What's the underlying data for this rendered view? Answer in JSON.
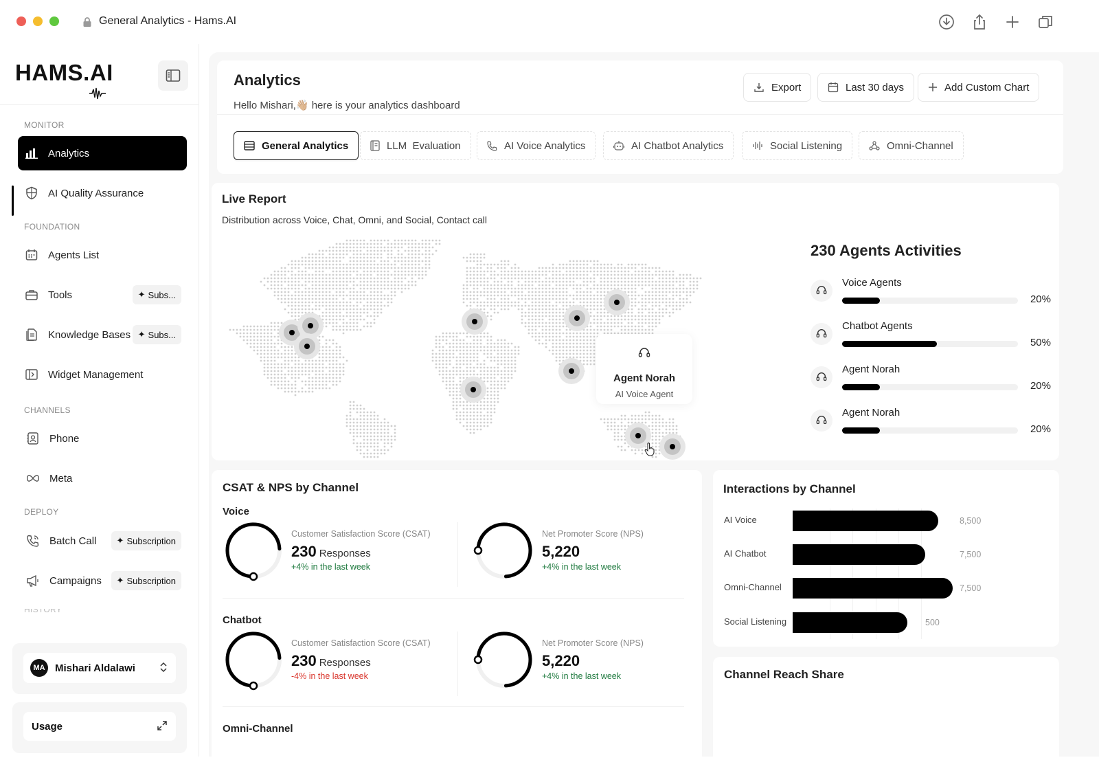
{
  "browser": {
    "title": "General Analytics - Hams.AI"
  },
  "sidebar": {
    "logo": "HAMS.AI",
    "sections": {
      "monitor": "MONITOR",
      "foundation": "FOUNDATION",
      "channels": "CHANNELS",
      "deploy": "DEPLOY",
      "history": "HISTORY"
    },
    "items": {
      "analytics": "Analytics",
      "ai_quality": "AI Quality Assurance",
      "agents_list": "Agents List",
      "tools": "Tools",
      "knowledge_bases": "Knowledge Bases",
      "widget_management": "Widget Management",
      "phone": "Phone",
      "meta": "Meta",
      "batch_call": "Batch Call",
      "campaigns": "Campaigns"
    },
    "badges": {
      "tools": "Subs...",
      "knowledge_bases": "Subs...",
      "batch_call": "Subscription",
      "campaigns": "Subscription"
    },
    "user": {
      "initials": "MA",
      "name": "Mishari Aldalawi"
    },
    "usage": "Usage"
  },
  "header": {
    "title": "Analytics",
    "subtitle": "Hello Mishari,👋🏼 here is your analytics dashboard",
    "export": "Export",
    "range": "Last 30 days",
    "add_chart": "Add Custom Chart"
  },
  "tabs": [
    "General Analytics",
    "LLM  Evaluation",
    "AI Voice Analytics",
    "AI Chatbot Analytics",
    "Social Listening",
    "Omni-Channel"
  ],
  "live_report": {
    "title": "Live Report",
    "subtitle": "Distribution across Voice, Chat, Omni, and Social, Contact call",
    "tooltip": {
      "name": "Agent Norah",
      "role": "AI Voice Agent"
    },
    "activities_title": "230 Agents Activities",
    "activities": [
      {
        "name": "Voice Agents",
        "percent": 20,
        "label": "20%",
        "icon": "headset-icon"
      },
      {
        "name": "Chatbot Agents",
        "percent": 50,
        "label": "50%",
        "icon": "headset-icon"
      },
      {
        "name": "Agent Norah",
        "percent": 20,
        "label": "20%",
        "icon": "headset-icon"
      },
      {
        "name": "Agent Norah",
        "percent": 20,
        "label": "20%",
        "icon": "headset-icon"
      }
    ]
  },
  "csat": {
    "title": "CSAT & NPS by Channel",
    "groups": [
      {
        "label": "Voice",
        "csat": {
          "label": "Customer Satisfaction Score (CSAT)",
          "value": "230",
          "unit": "Responses",
          "delta": "+4% in the last week",
          "positive": true
        },
        "nps": {
          "label": "Net Promoter Score (NPS)",
          "value": "5,220",
          "delta": "+4% in the last week",
          "positive": true
        }
      },
      {
        "label": "Chatbot",
        "csat": {
          "label": "Customer Satisfaction Score (CSAT)",
          "value": "230",
          "unit": "Responses",
          "delta": "-4% in the last week",
          "positive": false
        },
        "nps": {
          "label": "Net Promoter Score (NPS)",
          "value": "5,220",
          "delta": "+4% in the last week",
          "positive": true
        }
      },
      {
        "label": "Omni-Channel"
      }
    ]
  },
  "interactions": {
    "title": "Interactions by Channel"
  },
  "chart_data": {
    "type": "bar",
    "orientation": "horizontal",
    "title": "Interactions by Channel",
    "categories": [
      "AI Voice",
      "AI Chatbot",
      "Omni-Channel",
      "Social Listening"
    ],
    "values": [
      8500,
      7500,
      7500,
      500
    ],
    "value_labels": [
      "8,500",
      "7,500",
      "7,500",
      "500"
    ],
    "bar_color": "#000000"
  },
  "reach": {
    "title": "Channel Reach Share"
  },
  "colors": {
    "accent": "#000000",
    "positive": "#1f7a3f",
    "negative": "#d9342b",
    "close": "#ee5f57",
    "minimize": "#f5bd2e",
    "maximize": "#5fc83e"
  }
}
